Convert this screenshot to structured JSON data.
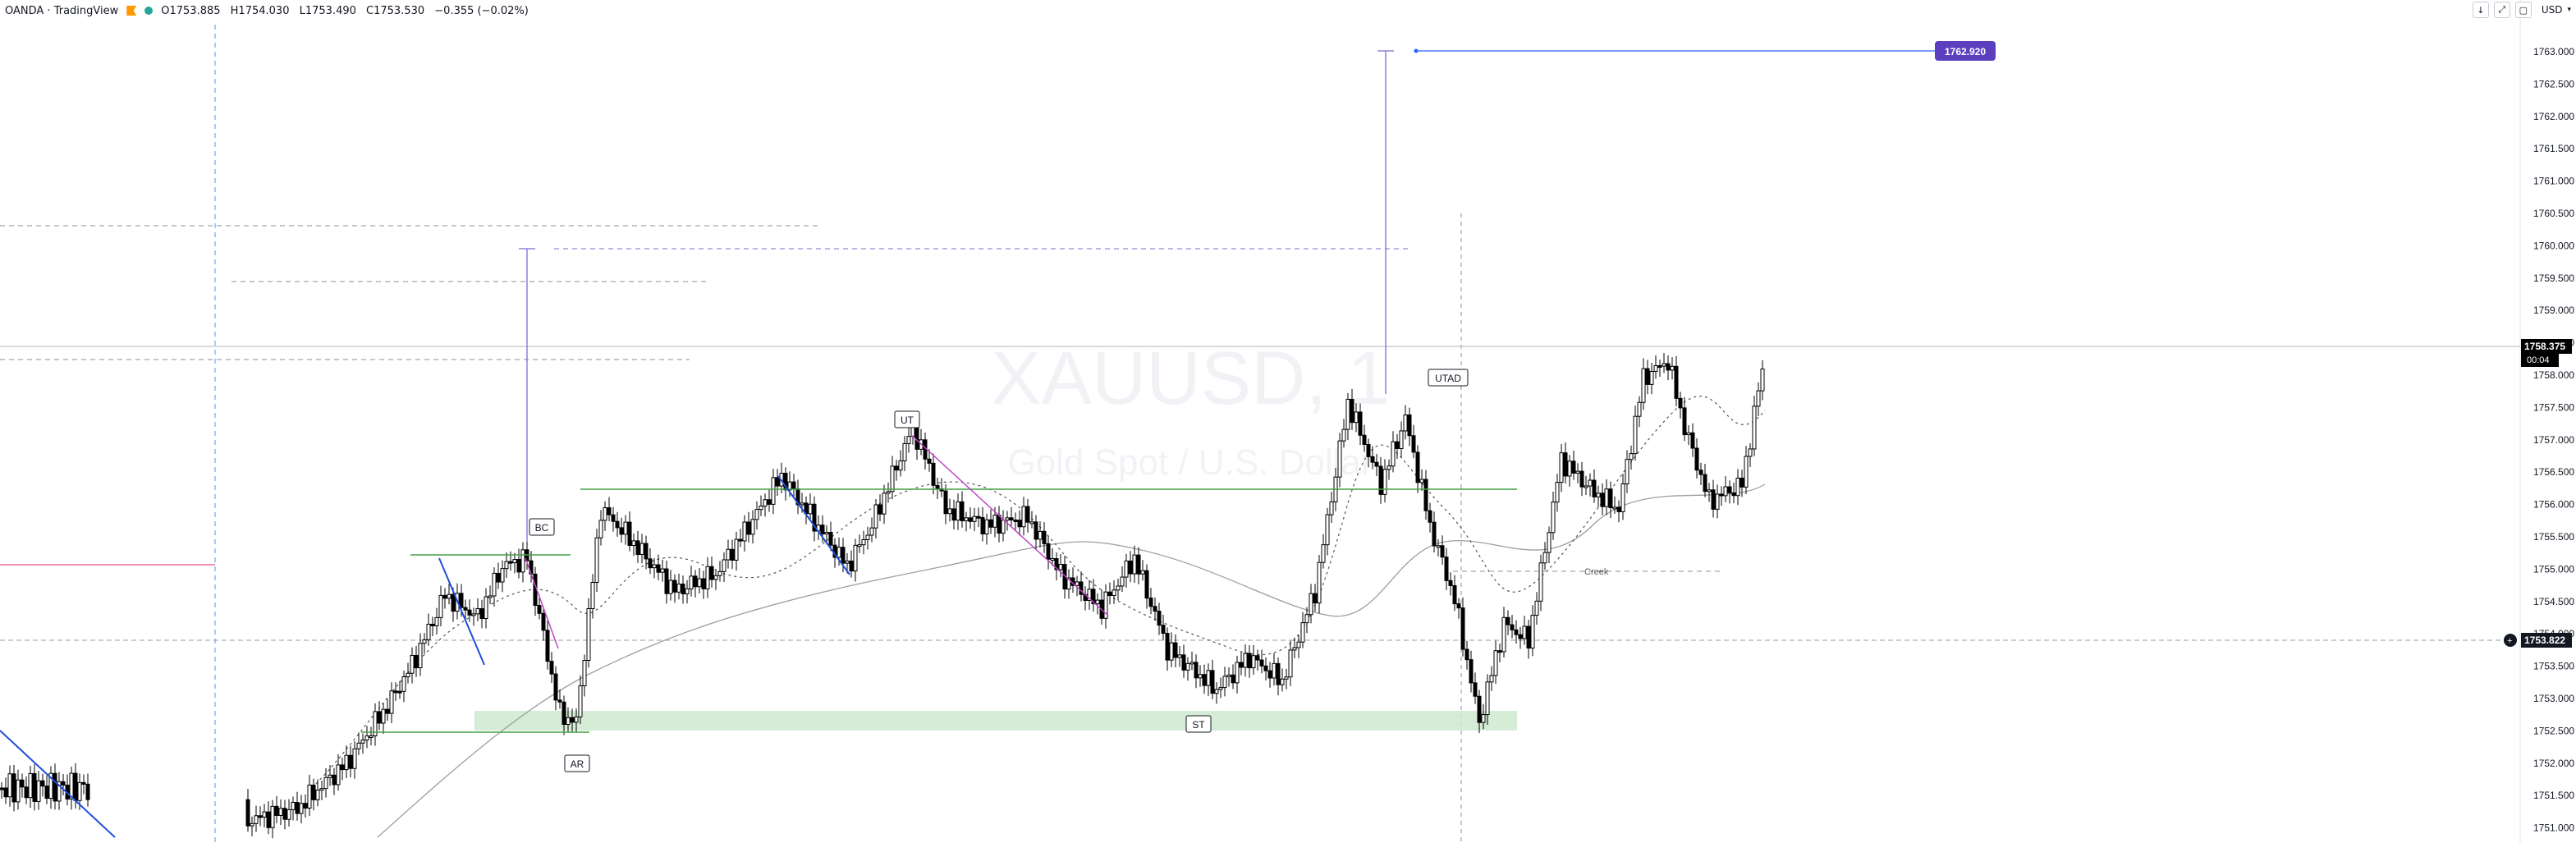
{
  "header": {
    "symbol_title": "OANDA · TradingView",
    "ohlc": {
      "open": "O1753.885",
      "high": "H1754.030",
      "low": "L1753.490",
      "close": "C1753.530",
      "change": "−0.355 (−0.02%)"
    },
    "currency": "USD",
    "toolbar_buttons": [
      "arrow-down-icon",
      "expand-icon",
      "restore-icon"
    ]
  },
  "watermark": {
    "symbol": "XAUUSD, 1",
    "description": "Gold Spot / U.S. Dollar"
  },
  "price_axis": {
    "ticks": [
      "1763.000",
      "1762.500",
      "1762.000",
      "1761.500",
      "1761.000",
      "1760.500",
      "1760.000",
      "1759.500",
      "1759.000",
      "1758.500",
      "1758.000",
      "1757.500",
      "1757.000",
      "1756.500",
      "1756.000",
      "1755.500",
      "1755.000",
      "1754.500",
      "1754.000",
      "1753.500",
      "1753.000",
      "1752.500",
      "1752.000",
      "1751.500",
      "1751.000"
    ],
    "current_price": "1758.375",
    "countdown": "00:04",
    "crosshair_price": "1753.822",
    "target_price": "1762.920"
  },
  "annotations": {
    "labels": [
      "BC",
      "AR",
      "UT",
      "ST",
      "UTAD"
    ],
    "creek": "Creek"
  },
  "colors": {
    "up": "#ffffff",
    "down": "#000000",
    "accent": "#5b3fbf",
    "support": "#4caf50",
    "zone": "#cfe9cf",
    "trend": "#1e4fd8"
  }
}
